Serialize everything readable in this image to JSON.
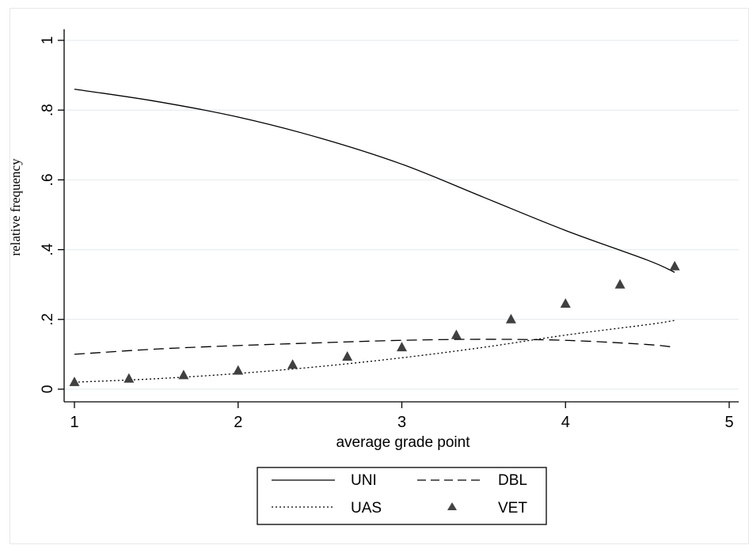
{
  "chart_data": {
    "type": "line",
    "xlabel": "average grade point",
    "ylabel": "relative frequency",
    "xlim": [
      1,
      5
    ],
    "ylim": [
      0,
      1
    ],
    "x_ticks": [
      "1",
      "2",
      "3",
      "4",
      "5"
    ],
    "x_tick_values": [
      1,
      2,
      3,
      4,
      5
    ],
    "y_ticks": [
      "0",
      ".2",
      ".4",
      ".6",
      ".8",
      "1"
    ],
    "y_tick_values": [
      0,
      0.2,
      0.4,
      0.6,
      0.8,
      1
    ],
    "grid": "horizontal",
    "legend_position": "bottom",
    "series": [
      {
        "name": "UNI",
        "style": "solid",
        "x": [
          1,
          1.5,
          2,
          2.5,
          3,
          3.5,
          4,
          4.5,
          4.667
        ],
        "y": [
          0.86,
          0.825,
          0.78,
          0.72,
          0.645,
          0.55,
          0.455,
          0.37,
          0.335
        ]
      },
      {
        "name": "DBL",
        "style": "dashed",
        "x": [
          1,
          1.5,
          2,
          2.5,
          3,
          3.5,
          4,
          4.5,
          4.667
        ],
        "y": [
          0.1,
          0.115,
          0.125,
          0.133,
          0.14,
          0.143,
          0.14,
          0.128,
          0.12
        ]
      },
      {
        "name": "UAS",
        "style": "dotted",
        "x": [
          1,
          1.5,
          2,
          2.5,
          3,
          3.5,
          4,
          4.5,
          4.667
        ],
        "y": [
          0.02,
          0.03,
          0.045,
          0.065,
          0.09,
          0.12,
          0.155,
          0.185,
          0.197
        ]
      },
      {
        "name": "VET",
        "style": "markers",
        "x": [
          1,
          1.333,
          1.667,
          2,
          2.333,
          2.667,
          3,
          3.333,
          3.667,
          4,
          4.333,
          4.667
        ],
        "y": [
          0.02,
          0.03,
          0.04,
          0.053,
          0.07,
          0.093,
          0.12,
          0.155,
          0.2,
          0.245,
          0.3,
          0.352
        ]
      }
    ]
  }
}
